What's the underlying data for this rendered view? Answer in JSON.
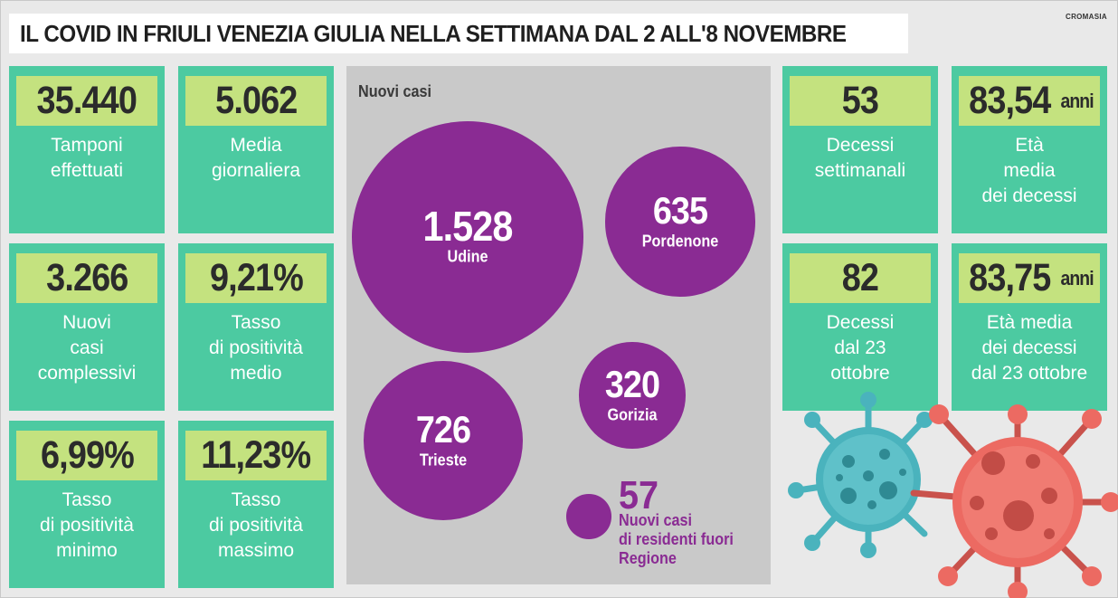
{
  "header": {
    "title": "IL COVID IN FRIULI VENEZIA GIULIA NELLA SETTIMANA DAL 2 ALL'8 NOVEMBRE",
    "brand": "CROMASIA"
  },
  "stats_left": [
    {
      "value": "35.440",
      "label": [
        "Tamponi",
        "effettuati"
      ]
    },
    {
      "value": "5.062",
      "label": [
        "Media",
        "giornaliera"
      ]
    },
    {
      "value": "3.266",
      "label": [
        "Nuovi",
        "casi",
        "complessivi"
      ]
    },
    {
      "value": "9,21%",
      "label": [
        "Tasso",
        "di positività",
        "medio"
      ]
    },
    {
      "value": "6,99%",
      "label": [
        "Tasso",
        "di positività",
        "minimo"
      ]
    },
    {
      "value": "11,23%",
      "label": [
        "Tasso",
        "di positività",
        "massimo"
      ]
    }
  ],
  "stats_right": [
    {
      "value": "53",
      "unit": "",
      "label": [
        "Decessi",
        "settimanali"
      ]
    },
    {
      "value": "83,54",
      "unit": "anni",
      "label": [
        "Età",
        "media",
        "dei decessi"
      ]
    },
    {
      "value": "82",
      "unit": "",
      "label": [
        "Decessi",
        "dal 23",
        "ottobre"
      ]
    },
    {
      "value": "83,75",
      "unit": "anni",
      "label": [
        "Età media",
        "dei decessi",
        "dal 23 ottobre"
      ]
    }
  ],
  "chart_data": {
    "type": "bubble",
    "title": "Nuovi casi",
    "series": [
      {
        "name": "Udine",
        "value": 1528,
        "display": "1.528"
      },
      {
        "name": "Trieste",
        "value": 726,
        "display": "726"
      },
      {
        "name": "Pordenone",
        "value": 635,
        "display": "635"
      },
      {
        "name": "Gorizia",
        "value": 320,
        "display": "320"
      },
      {
        "name": "Nuovi casi di residenti fuori Regione",
        "value": 57,
        "display": "57"
      }
    ],
    "outside_label": [
      "Nuovi casi",
      "di residenti fuori",
      "Regione"
    ],
    "bubble_color": "#8a2b93"
  },
  "colors": {
    "card_bg": "#4ccaa1",
    "value_bg": "#c4e27f",
    "panel_bg": "#c9c9c9",
    "virus_teal": "#4ab3bd",
    "virus_red": "#ec6a62"
  },
  "icons": [
    "virus-teal-icon",
    "virus-red-icon"
  ]
}
